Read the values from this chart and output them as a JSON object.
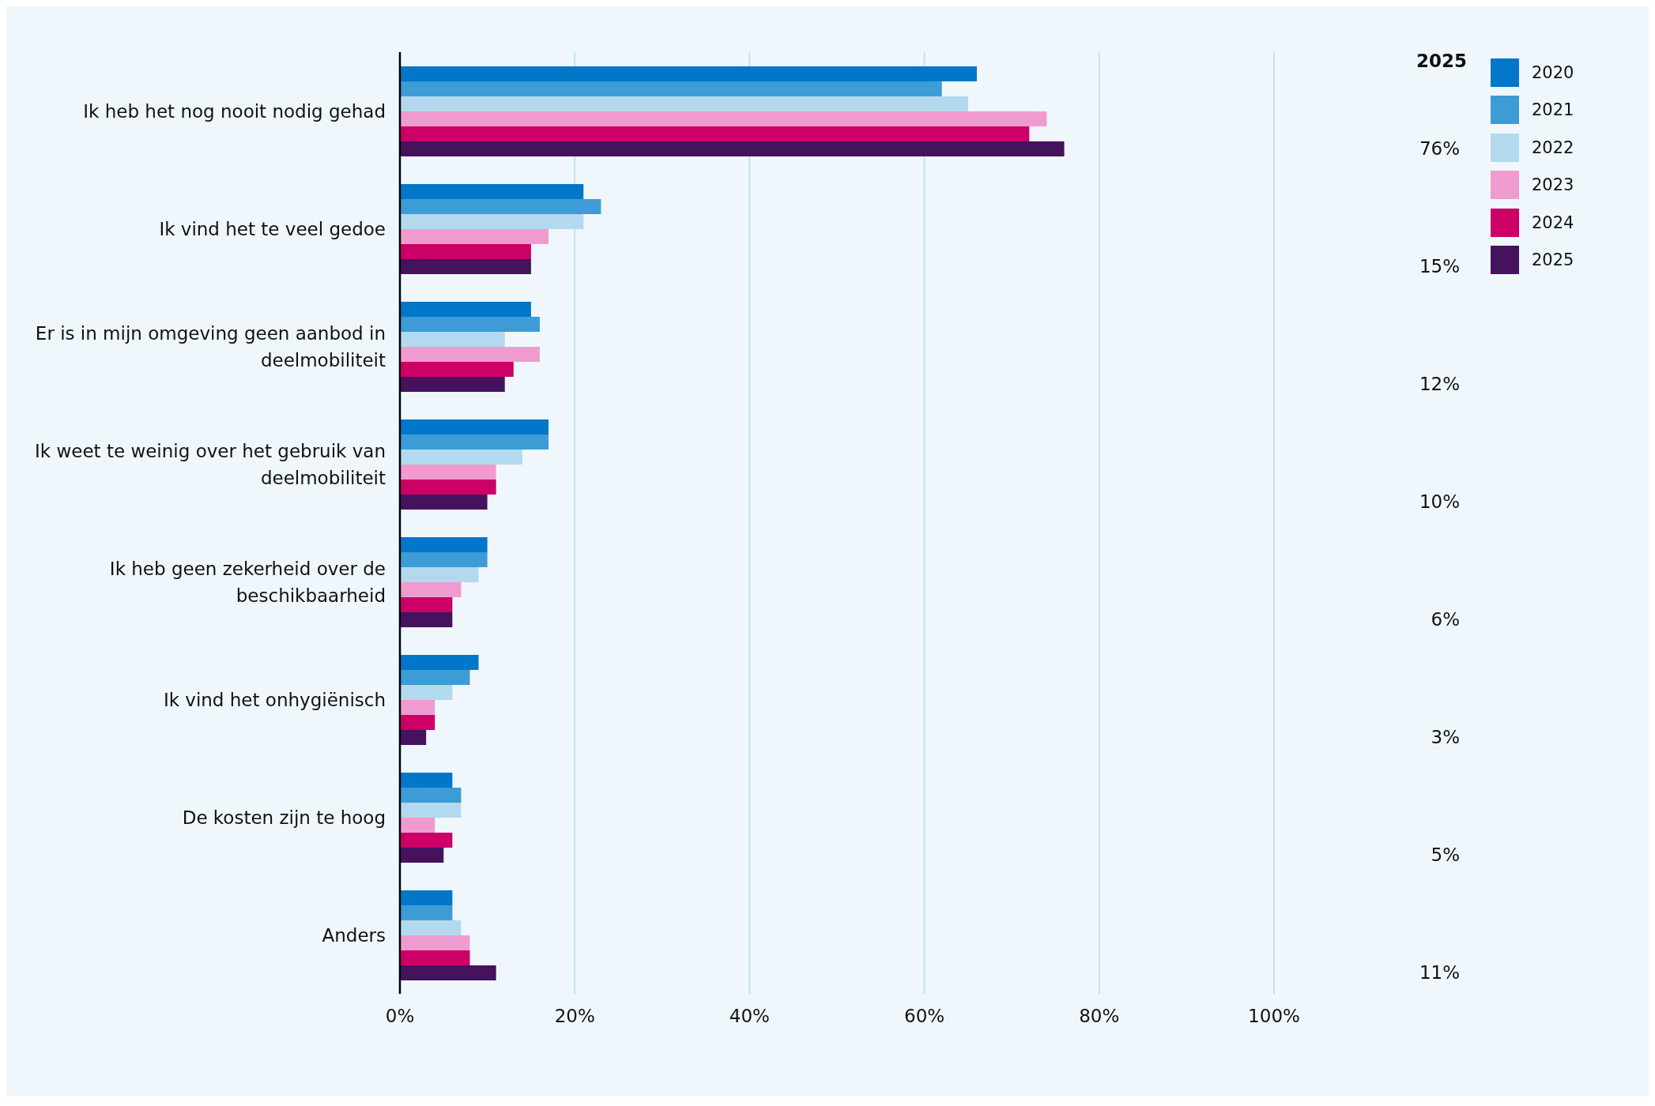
{
  "chart_data": {
    "type": "bar",
    "orientation": "horizontal",
    "categories": [
      "Ik heb het nog nooit nodig gehad",
      "Ik vind het te veel gedoe",
      "Er is in mijn omgeving geen aanbod in deelmobiliteit",
      "Ik weet te weinig over het gebruik van deelmobiliteit",
      "Ik heb geen zekerheid over de beschikbaarheid",
      "Ik vind het onhygiënisch",
      "De kosten zijn te hoog",
      "Anders"
    ],
    "series": [
      {
        "name": "2020",
        "color": "#0077c8",
        "values": [
          66,
          21,
          15,
          17,
          10,
          9,
          6,
          6
        ]
      },
      {
        "name": "2021",
        "color": "#3d9bd6",
        "values": [
          62,
          23,
          16,
          17,
          10,
          8,
          7,
          6
        ]
      },
      {
        "name": "2022",
        "color": "#b3d9ef",
        "values": [
          65,
          21,
          12,
          14,
          9,
          6,
          7,
          7
        ]
      },
      {
        "name": "2023",
        "color": "#f09bd0",
        "values": [
          74,
          17,
          16,
          11,
          7,
          4,
          4,
          8
        ]
      },
      {
        "name": "2024",
        "color": "#cc0066",
        "values": [
          72,
          15,
          13,
          11,
          6,
          4,
          6,
          8
        ]
      },
      {
        "name": "2025",
        "color": "#45125e",
        "values": [
          76,
          15,
          12,
          10,
          6,
          3,
          5,
          11
        ],
        "value_labels": [
          "76%",
          "15%",
          "12%",
          "10%",
          "6%",
          "3%",
          "5%",
          "11%"
        ]
      }
    ],
    "xlim": [
      0,
      100
    ],
    "xticks": [
      {
        "value": 0,
        "label": "0%"
      },
      {
        "value": 20,
        "label": "20%"
      },
      {
        "value": 40,
        "label": "40%"
      },
      {
        "value": 60,
        "label": "60%"
      },
      {
        "value": 80,
        "label": "80%"
      },
      {
        "value": 100,
        "label": "100%"
      }
    ],
    "annotations": [
      "2025"
    ],
    "grid": "x",
    "legend": "top right"
  }
}
